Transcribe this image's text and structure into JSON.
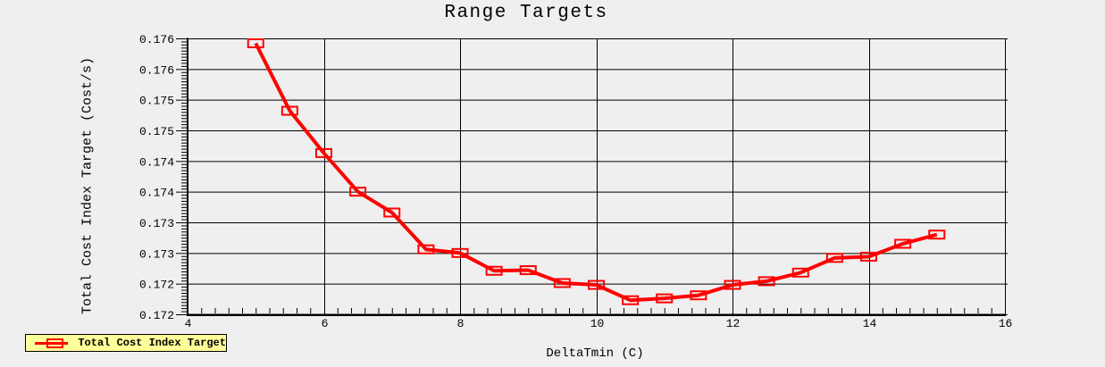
{
  "window": {
    "background": "#EFEFEF"
  },
  "chart_data": {
    "type": "line",
    "title": "Range Targets",
    "xlabel": "DeltaTmin (C)",
    "ylabel": "Total Cost Index Target (Cost/s)",
    "xlim": [
      4,
      16
    ],
    "ylim": [
      0.1715,
      0.176
    ],
    "x_major_step": 2,
    "x_minor_step": 0.2,
    "y_major_step": 0.0005,
    "y_minor_step": 5e-05,
    "x_tick_labels": [
      "4",
      "6",
      "8",
      "10",
      "12",
      "14",
      "16"
    ],
    "y_tick_labels": [
      "0.176",
      "0.176",
      "0.175",
      "0.175",
      "0.174",
      "0.174",
      "0.173",
      "0.173",
      "0.172",
      "0.172"
    ],
    "grid": true,
    "series": [
      {
        "name": "Total Cost Index Target",
        "color": "#FF0000",
        "marker": "open-square",
        "x": [
          5,
          5.5,
          6,
          6.5,
          7,
          7.5,
          8,
          8.5,
          9,
          9.5,
          10,
          10.5,
          11,
          11.5,
          12,
          12.5,
          13,
          13.5,
          14,
          14.5,
          15
        ],
        "values": [
          0.17592,
          0.17482,
          0.17413,
          0.1735,
          0.17316,
          0.17256,
          0.1725,
          0.17221,
          0.17222,
          0.17201,
          0.17198,
          0.17173,
          0.17176,
          0.17181,
          0.17198,
          0.17204,
          0.17218,
          0.17242,
          0.17244,
          0.17265,
          0.1728
        ]
      }
    ],
    "legend": {
      "position": "bottom-left",
      "background": "#FFFF99",
      "border_color": "#000000",
      "entries": [
        "Total Cost Index Target"
      ]
    }
  }
}
